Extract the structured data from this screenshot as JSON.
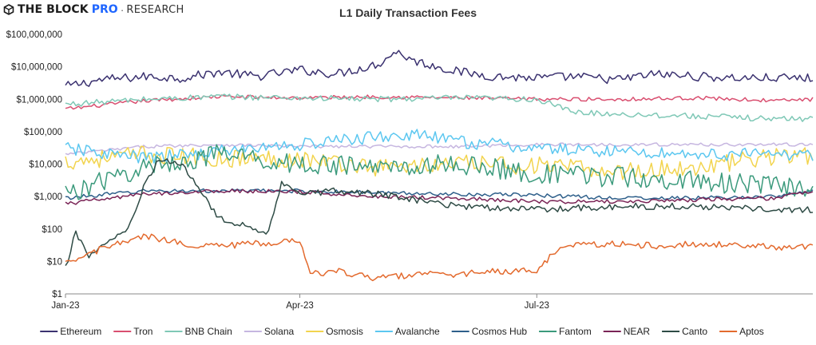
{
  "brand": {
    "name": "THE BLOCK",
    "pro": "PRO",
    "separator": "·",
    "research": "RESEARCH"
  },
  "chart_data": {
    "type": "line",
    "title": "L1 Daily Transaction Fees",
    "xlabel": "",
    "ylabel": "",
    "y_scale": "log",
    "ylim": [
      1,
      100000000
    ],
    "y_ticks": [
      {
        "value": 100000000,
        "label": "$100,000,000"
      },
      {
        "value": 10000000,
        "label": "$10,000,000"
      },
      {
        "value": 1000000,
        "label": "$1,000,000"
      },
      {
        "value": 100000,
        "label": "$100,000"
      },
      {
        "value": 10000,
        "label": "$10,000"
      },
      {
        "value": 1000,
        "label": "$1,000"
      },
      {
        "value": 100,
        "label": "$100"
      },
      {
        "value": 10,
        "label": "$10"
      },
      {
        "value": 1,
        "label": "$1"
      }
    ],
    "xlim": [
      "2023-01-01",
      "2023-10-15"
    ],
    "x_ticks": [
      {
        "date": "2023-01-01",
        "label": "Jan-23"
      },
      {
        "date": "2023-04-01",
        "label": "Apr-23"
      },
      {
        "date": "2023-07-01",
        "label": "Jul-23"
      }
    ],
    "grid": false,
    "legend": "bottom",
    "series": [
      {
        "name": "Ethereum",
        "color": "#3b3270",
        "x": [
          "2023-01-01",
          "2023-01-15",
          "2023-02-01",
          "2023-02-15",
          "2023-03-01",
          "2023-03-15",
          "2023-04-01",
          "2023-04-15",
          "2023-05-01",
          "2023-05-08",
          "2023-05-15",
          "2023-06-01",
          "2023-06-15",
          "2023-07-01",
          "2023-07-15",
          "2023-08-01",
          "2023-08-15",
          "2023-09-01",
          "2023-09-15",
          "2023-10-01",
          "2023-10-15"
        ],
        "y": [
          2500000,
          4000000,
          5000000,
          4500000,
          7000000,
          5000000,
          8000000,
          6000000,
          12000000,
          30000000,
          15000000,
          7000000,
          5000000,
          4500000,
          5000000,
          4000000,
          6000000,
          5000000,
          4500000,
          4500000,
          4500000
        ]
      },
      {
        "name": "Tron",
        "color": "#d94f70",
        "x": [
          "2023-01-01",
          "2023-02-01",
          "2023-03-01",
          "2023-04-01",
          "2023-05-01",
          "2023-06-01",
          "2023-07-01",
          "2023-08-01",
          "2023-09-01",
          "2023-10-01",
          "2023-10-15"
        ],
        "y": [
          500000,
          900000,
          1200000,
          1100000,
          1200000,
          1100000,
          1000000,
          1000000,
          1100000,
          900000,
          1000000
        ]
      },
      {
        "name": "BNB Chain",
        "color": "#7fc8b6",
        "x": [
          "2023-01-01",
          "2023-02-01",
          "2023-03-01",
          "2023-04-01",
          "2023-05-01",
          "2023-06-01",
          "2023-07-01",
          "2023-07-15",
          "2023-08-01",
          "2023-09-01",
          "2023-10-01",
          "2023-10-15"
        ],
        "y": [
          700000,
          1000000,
          1200000,
          1100000,
          1000000,
          1100000,
          1000000,
          400000,
          350000,
          300000,
          250000,
          250000
        ]
      },
      {
        "name": "Solana",
        "color": "#c6b6e0",
        "x": [
          "2023-01-01",
          "2023-02-01",
          "2023-03-01",
          "2023-04-01",
          "2023-05-01",
          "2023-06-01",
          "2023-07-01",
          "2023-08-01",
          "2023-09-01",
          "2023-10-01",
          "2023-10-15"
        ],
        "y": [
          20000,
          35000,
          40000,
          35000,
          35000,
          35000,
          40000,
          40000,
          40000,
          40000,
          40000
        ]
      },
      {
        "name": "Osmosis",
        "color": "#f2d44e",
        "x": [
          "2023-01-01",
          "2023-02-01",
          "2023-03-01",
          "2023-04-01",
          "2023-05-01",
          "2023-06-01",
          "2023-07-01",
          "2023-08-01",
          "2023-09-01",
          "2023-10-01",
          "2023-10-15"
        ],
        "y": [
          12000,
          20000,
          15000,
          15000,
          8000,
          10000,
          9000,
          6000,
          8000,
          18000,
          18000
        ]
      },
      {
        "name": "Avalanche",
        "color": "#5cc7f0",
        "x": [
          "2023-01-01",
          "2023-02-01",
          "2023-03-01",
          "2023-04-01",
          "2023-05-01",
          "2023-05-15",
          "2023-06-01",
          "2023-07-01",
          "2023-08-01",
          "2023-09-01",
          "2023-10-01",
          "2023-10-15"
        ],
        "y": [
          30000,
          15000,
          25000,
          40000,
          70000,
          80000,
          50000,
          30000,
          25000,
          20000,
          20000,
          20000
        ]
      },
      {
        "name": "Cosmos Hub",
        "color": "#2e5f8a",
        "x": [
          "2023-01-01",
          "2023-02-01",
          "2023-03-01",
          "2023-04-01",
          "2023-05-01",
          "2023-06-01",
          "2023-07-01",
          "2023-08-01",
          "2023-09-01",
          "2023-10-01",
          "2023-10-15"
        ],
        "y": [
          900,
          1500,
          1500,
          1500,
          1300,
          1200,
          1100,
          900,
          900,
          1000,
          1500
        ]
      },
      {
        "name": "Fantom",
        "color": "#3b9a7c",
        "x": [
          "2023-01-01",
          "2023-02-01",
          "2023-03-01",
          "2023-04-01",
          "2023-05-01",
          "2023-06-01",
          "2023-07-01",
          "2023-08-01",
          "2023-09-01",
          "2023-10-01",
          "2023-10-15"
        ],
        "y": [
          1200,
          8000,
          20000,
          10000,
          8000,
          10000,
          5000,
          4000,
          3000,
          2000,
          2000
        ]
      },
      {
        "name": "NEAR",
        "color": "#7a2456",
        "x": [
          "2023-01-01",
          "2023-02-01",
          "2023-03-01",
          "2023-04-01",
          "2023-05-01",
          "2023-06-01",
          "2023-07-01",
          "2023-08-01",
          "2023-09-01",
          "2023-10-01",
          "2023-10-15"
        ],
        "y": [
          600,
          1200,
          1500,
          1400,
          1000,
          900,
          700,
          700,
          800,
          900,
          1500
        ]
      },
      {
        "name": "Canto",
        "color": "#2e4b45",
        "x": [
          "2023-01-01",
          "2023-01-05",
          "2023-01-10",
          "2023-01-15",
          "2023-01-20",
          "2023-01-25",
          "2023-02-01",
          "2023-02-05",
          "2023-02-10",
          "2023-02-15",
          "2023-03-01",
          "2023-03-20",
          "2023-03-25",
          "2023-04-01",
          "2023-04-15",
          "2023-05-01",
          "2023-06-01",
          "2023-07-01",
          "2023-08-01",
          "2023-09-01",
          "2023-10-01",
          "2023-10-15"
        ],
        "y": [
          6,
          80,
          15,
          30,
          50,
          90,
          3000,
          10000,
          12000,
          10000,
          200,
          80,
          3000,
          1200,
          1500,
          1200,
          500,
          400,
          500,
          500,
          400,
          400
        ]
      },
      {
        "name": "Aptos",
        "color": "#e36a2e",
        "x": [
          "2023-01-01",
          "2023-01-15",
          "2023-02-01",
          "2023-02-15",
          "2023-03-01",
          "2023-03-15",
          "2023-04-01",
          "2023-04-05",
          "2023-04-15",
          "2023-05-01",
          "2023-05-15",
          "2023-06-01",
          "2023-06-15",
          "2023-07-01",
          "2023-07-08",
          "2023-07-15",
          "2023-08-01",
          "2023-08-15",
          "2023-09-01",
          "2023-10-01",
          "2023-10-15"
        ],
        "y": [
          8,
          25,
          60,
          35,
          30,
          35,
          45,
          4,
          5,
          3,
          4,
          4,
          5,
          5,
          20,
          30,
          35,
          30,
          35,
          28,
          28
        ]
      }
    ]
  }
}
